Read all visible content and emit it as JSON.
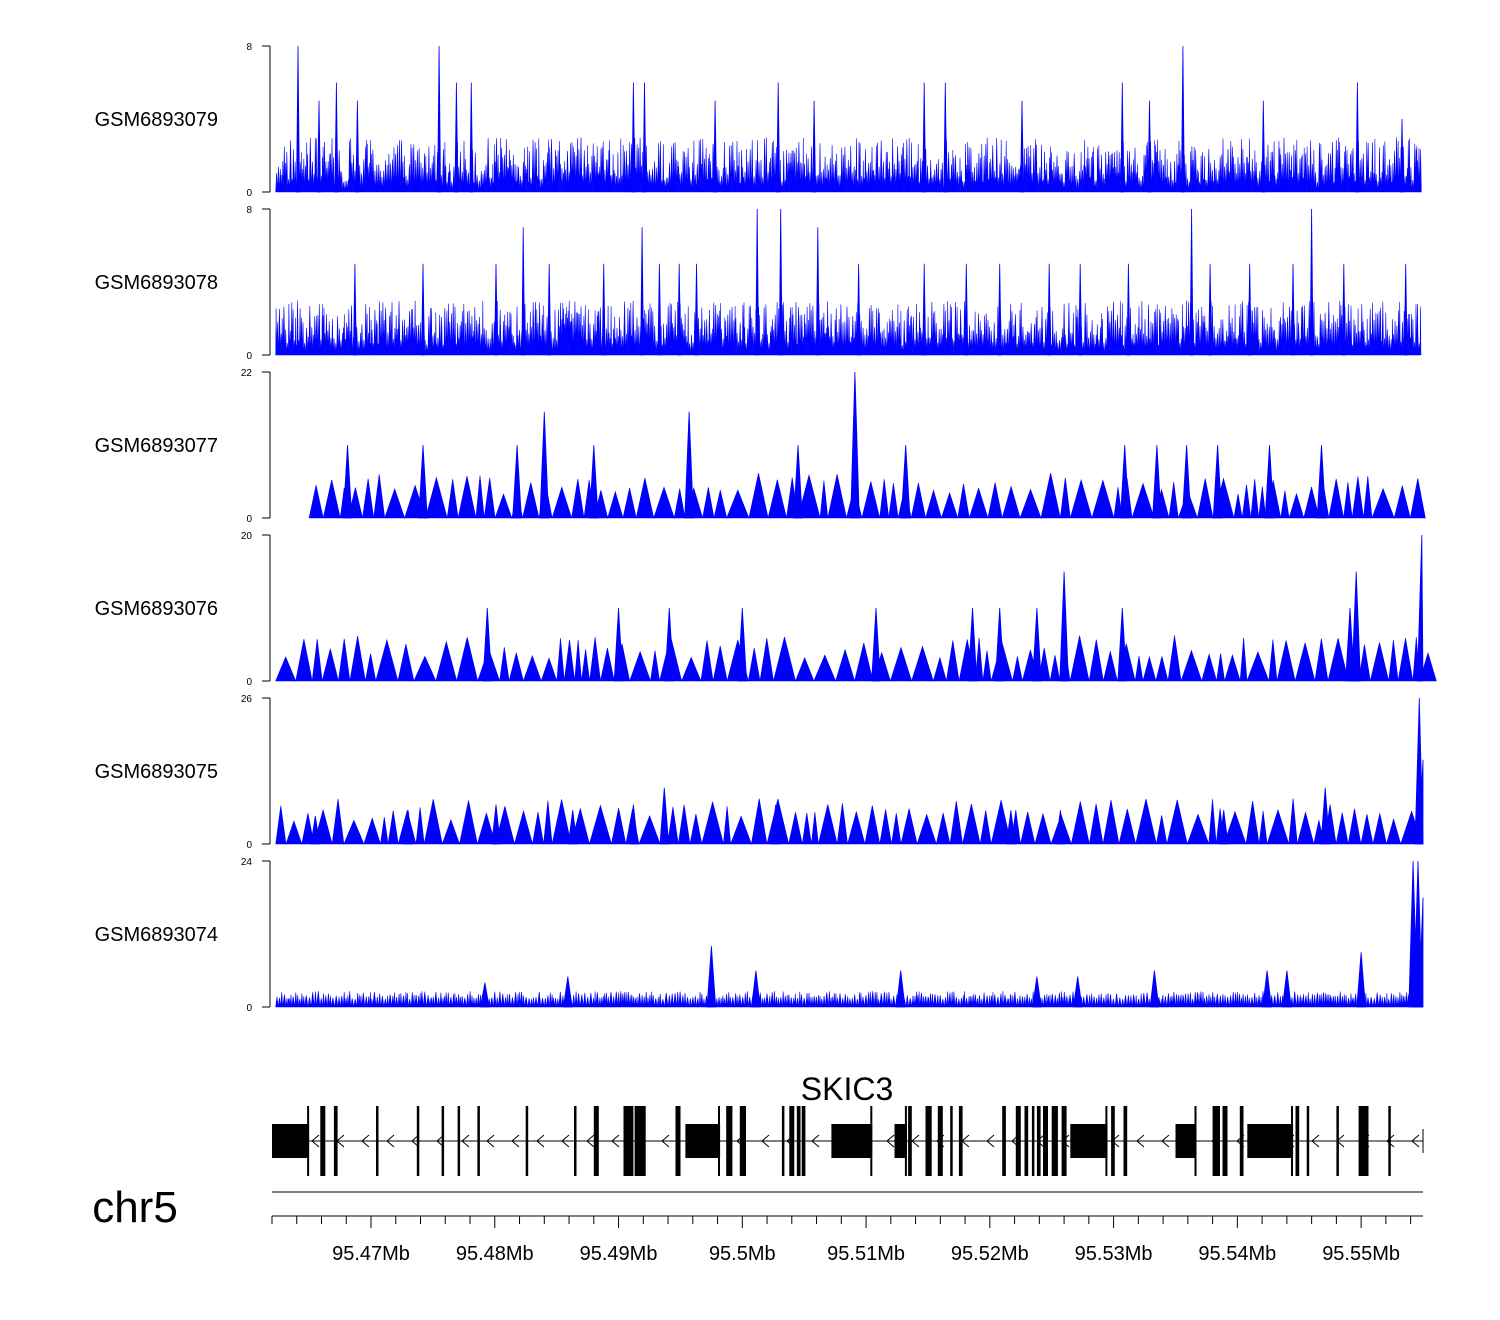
{
  "chart_data": {
    "type": "area",
    "chromosome": "chr5",
    "x_range": [
      95462000,
      95555000
    ],
    "x_ticks": [
      {
        "value": 95470000,
        "label": "95.47Mb"
      },
      {
        "value": 95480000,
        "label": "95.48Mb"
      },
      {
        "value": 95490000,
        "label": "95.49Mb"
      },
      {
        "value": 95500000,
        "label": "95.5Mb"
      },
      {
        "value": 95510000,
        "label": "95.51Mb"
      },
      {
        "value": 95520000,
        "label": "95.52Mb"
      },
      {
        "value": 95530000,
        "label": "95.53Mb"
      },
      {
        "value": 95540000,
        "label": "95.54Mb"
      },
      {
        "value": 95550000,
        "label": "95.55Mb"
      }
    ],
    "tracks": [
      {
        "name": "GSM6893079",
        "ylim": [
          0,
          8
        ],
        "ytick_labels": [
          "0",
          "8"
        ],
        "color": "#0000ff",
        "peaks": [
          [
            95464100,
            8
          ],
          [
            95465800,
            5
          ],
          [
            95467200,
            6
          ],
          [
            95468900,
            5
          ],
          [
            95475500,
            8
          ],
          [
            95476900,
            6
          ],
          [
            95478100,
            6
          ],
          [
            95491200,
            6
          ],
          [
            95492100,
            6
          ],
          [
            95497800,
            5
          ],
          [
            95502900,
            6
          ],
          [
            95505800,
            5
          ],
          [
            95514700,
            6
          ],
          [
            95516400,
            6
          ],
          [
            95522600,
            5
          ],
          [
            95530700,
            6
          ],
          [
            95532900,
            5
          ],
          [
            95535600,
            8
          ],
          [
            95542100,
            5
          ],
          [
            95549700,
            6
          ],
          [
            95553300,
            4
          ]
        ]
      },
      {
        "name": "GSM6893078",
        "ylim": [
          0,
          8
        ],
        "ytick_labels": [
          "0",
          "8"
        ],
        "color": "#0000ff",
        "peaks": [
          [
            95468700,
            5
          ],
          [
            95474200,
            5
          ],
          [
            95480100,
            5
          ],
          [
            95482300,
            7
          ],
          [
            95484400,
            5
          ],
          [
            95488800,
            5
          ],
          [
            95491900,
            7
          ],
          [
            95493300,
            5
          ],
          [
            95494900,
            5
          ],
          [
            95496300,
            5
          ],
          [
            95501200,
            8
          ],
          [
            95503100,
            8
          ],
          [
            95506100,
            7
          ],
          [
            95509400,
            5
          ],
          [
            95514700,
            5
          ],
          [
            95518100,
            5
          ],
          [
            95520800,
            5
          ],
          [
            95524800,
            5
          ],
          [
            95527300,
            5
          ],
          [
            95531200,
            5
          ],
          [
            95536300,
            8
          ],
          [
            95537800,
            5
          ],
          [
            95541000,
            5
          ],
          [
            95544500,
            5
          ],
          [
            95546000,
            8
          ],
          [
            95548600,
            5
          ],
          [
            95553600,
            5
          ]
        ]
      },
      {
        "name": "GSM6893077",
        "ylim": [
          0,
          22
        ],
        "ytick_labels": [
          "0",
          "22"
        ],
        "color": "#0000ff",
        "peaks": [
          [
            95468100,
            11
          ],
          [
            95474200,
            11
          ],
          [
            95481800,
            11
          ],
          [
            95484000,
            16
          ],
          [
            95488000,
            11
          ],
          [
            95495700,
            16
          ],
          [
            95504500,
            11
          ],
          [
            95509100,
            22
          ],
          [
            95513200,
            11
          ],
          [
            95530900,
            11
          ],
          [
            95533500,
            11
          ],
          [
            95535900,
            11
          ],
          [
            95538400,
            11
          ],
          [
            95542600,
            11
          ],
          [
            95546800,
            11
          ]
        ]
      },
      {
        "name": "GSM6893076",
        "ylim": [
          0,
          20
        ],
        "ytick_labels": [
          "0",
          "20"
        ],
        "color": "#0000ff",
        "peaks": [
          [
            95479400,
            10
          ],
          [
            95490000,
            10
          ],
          [
            95494100,
            10
          ],
          [
            95500000,
            10
          ],
          [
            95510800,
            10
          ],
          [
            95518600,
            10
          ],
          [
            95520800,
            10
          ],
          [
            95523800,
            10
          ],
          [
            95526000,
            15
          ],
          [
            95530700,
            10
          ],
          [
            95549100,
            10
          ],
          [
            95549600,
            15
          ],
          [
            95554900,
            20
          ]
        ]
      },
      {
        "name": "GSM6893075",
        "ylim": [
          0,
          26
        ],
        "ytick_labels": [
          "0",
          "26"
        ],
        "color": "#0000ff",
        "peaks": [
          [
            95465500,
            5
          ],
          [
            95473000,
            6
          ],
          [
            95480100,
            7
          ],
          [
            95486300,
            6
          ],
          [
            95491200,
            7
          ],
          [
            95493700,
            10
          ],
          [
            95502700,
            7
          ],
          [
            95521700,
            6
          ],
          [
            95525700,
            6
          ],
          [
            95538900,
            6
          ],
          [
            95547100,
            10
          ],
          [
            95554700,
            26
          ],
          [
            95555000,
            15
          ]
        ]
      },
      {
        "name": "GSM6893074",
        "ylim": [
          0,
          24
        ],
        "ytick_labels": [
          "0",
          "24"
        ],
        "color": "#0000ff",
        "peaks": [
          [
            95479200,
            4
          ],
          [
            95485900,
            5
          ],
          [
            95497500,
            10
          ],
          [
            95501100,
            6
          ],
          [
            95512800,
            6
          ],
          [
            95523800,
            5
          ],
          [
            95527100,
            5
          ],
          [
            95533300,
            6
          ],
          [
            95542400,
            6
          ],
          [
            95544000,
            6
          ],
          [
            95550000,
            9
          ],
          [
            95554200,
            24
          ],
          [
            95554600,
            24
          ],
          [
            95555000,
            18
          ]
        ]
      }
    ],
    "gene": {
      "name": "SKIC3",
      "strand": "-",
      "exons": [
        [
          95462000,
          95465000
        ],
        [
          95465900,
          95466300
        ],
        [
          95467000,
          95467300
        ],
        [
          95470400,
          95470600
        ],
        [
          95473700,
          95473900
        ],
        [
          95475700,
          95475900
        ],
        [
          95477000,
          95477200
        ],
        [
          95478600,
          95478800
        ],
        [
          95482500,
          95482700
        ],
        [
          95486400,
          95486600
        ],
        [
          95488000,
          95488400
        ],
        [
          95490400,
          95491200
        ],
        [
          95491300,
          95492200
        ],
        [
          95494600,
          95495000
        ],
        [
          95495400,
          95498200
        ],
        [
          95498700,
          95499200
        ],
        [
          95499800,
          95500300
        ],
        [
          95503200,
          95503400
        ],
        [
          95503800,
          95504200
        ],
        [
          95504400,
          95504700
        ],
        [
          95504800,
          95505100
        ],
        [
          95507200,
          95510500
        ],
        [
          95512300,
          95513300
        ],
        [
          95513400,
          95513700
        ],
        [
          95514800,
          95515300
        ],
        [
          95515800,
          95516200
        ],
        [
          95516800,
          95517000
        ],
        [
          95517500,
          95517800
        ],
        [
          95521000,
          95521300
        ],
        [
          95522100,
          95522500
        ],
        [
          95522800,
          95523100
        ],
        [
          95523400,
          95523600
        ],
        [
          95523800,
          95524100
        ],
        [
          95524300,
          95524700
        ],
        [
          95525000,
          95525500
        ],
        [
          95525800,
          95526200
        ],
        [
          95526500,
          95529500
        ],
        [
          95529800,
          95530100
        ],
        [
          95530800,
          95531100
        ],
        [
          95535000,
          95536700
        ],
        [
          95538000,
          95538600
        ],
        [
          95538800,
          95539200
        ],
        [
          95540200,
          95540500
        ],
        [
          95540800,
          95544500
        ],
        [
          95544700,
          95545000
        ],
        [
          95545600,
          95545800
        ],
        [
          95548000,
          95548200
        ],
        [
          95549800,
          95550600
        ],
        [
          95552200,
          95552400
        ]
      ]
    }
  }
}
